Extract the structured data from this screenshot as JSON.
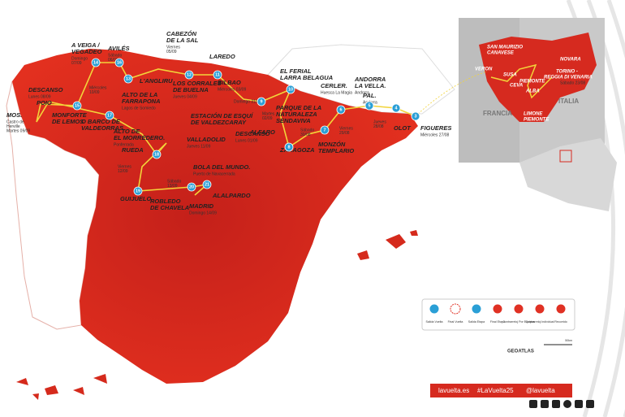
{
  "map": {
    "places": [
      {
        "name": [
          "A VEIGA /",
          "VEGADEO"
        ],
        "date": [
          "Domingo",
          "07/09"
        ]
      },
      {
        "name": [
          "AVILÉS"
        ],
        "date": [
          "Sábado",
          "06/09"
        ]
      },
      {
        "name": [
          "CABEZÓN",
          "DE LA SAL"
        ],
        "date": [
          "Viernes",
          "05/09"
        ]
      },
      {
        "name": [
          "LAREDO"
        ]
      },
      {
        "name": [
          "L'ANGLIRU"
        ]
      },
      {
        "name": [
          "LOS CORRALES",
          "DE BUELNA"
        ],
        "date": [
          "Jueves 04/09"
        ]
      },
      {
        "name": [
          "BILBAO"
        ],
        "date": [
          "Miércoles 03/09"
        ]
      },
      {
        "name": [
          "EL FERIAL",
          "LARRA BELAGUA"
        ]
      },
      {
        "name": [
          "DESCANSO"
        ],
        "date": [
          "Lunes 08/09"
        ]
      },
      {
        "date": [
          "Miércoles",
          "10/09"
        ]
      },
      {
        "name": [
          "ALTO DE LA",
          "FARRAPONA"
        ],
        "date": [
          "Lagos de Somiedo"
        ]
      },
      {
        "name": [
          "POIO"
        ]
      },
      {
        "name": [
          "MOS."
        ],
        "date": [
          "Castro de",
          "Herville",
          "Martes 09/09"
        ]
      },
      {
        "name": [
          "MONFORTE",
          "DE LEMOS"
        ]
      },
      {
        "name": [
          "O BARCO DE",
          "VALDEORRAS"
        ]
      },
      {
        "name": [
          "ALTO DE",
          "EL MORREDERO."
        ],
        "date": [
          "Ponferrada"
        ]
      },
      {
        "name": [
          "ESTACIÓN DE ESQUÍ",
          "DE VALDEZCARAY"
        ]
      },
      {
        "date": [
          "Domingo 31/08"
        ]
      },
      {
        "name": [
          "DESCANSO"
        ],
        "date": [
          "Lunes 01/09"
        ]
      },
      {
        "name": [
          "ALFARO"
        ]
      },
      {
        "date": [
          "Martes",
          "02/09"
        ]
      },
      {
        "name": [
          "PARQUE DE LA",
          "NATURALEZA",
          "SENDAVIVA"
        ]
      },
      {
        "name": [
          "CERLER."
        ],
        "date": [
          "Huesca La Magia"
        ]
      },
      {
        "name": [
          "ANDORRA",
          "LA VELLA."
        ],
        "date": [
          "Andorra"
        ]
      },
      {
        "name": [
          "PAL."
        ],
        "date": [
          "Andorra"
        ]
      },
      {
        "date": [
          "Sábado",
          "30/08"
        ]
      },
      {
        "name": [
          "ZARAGOZA"
        ]
      },
      {
        "date": [
          "Viernes",
          "29/08"
        ]
      },
      {
        "name": [
          "MONZÓN",
          "TEMPLARIO"
        ]
      },
      {
        "date": [
          "Jueves",
          "28/08"
        ]
      },
      {
        "name": [
          "OLOT"
        ]
      },
      {
        "name": [
          "FIGUERES"
        ],
        "date": [
          "Miércoles 27/08"
        ]
      },
      {
        "name": [
          "VALLADOLID"
        ],
        "date": [
          "Jueves 11/09"
        ]
      },
      {
        "name": [
          "RUEDA"
        ]
      },
      {
        "date": [
          "Viernes",
          "12/09"
        ]
      },
      {
        "name": [
          "GUIJUELO"
        ]
      },
      {
        "name": [
          "BOLA DEL MUNDO."
        ],
        "date": [
          "Puerto de Navacerrada"
        ]
      },
      {
        "date": [
          "Sábado",
          "13/09"
        ]
      },
      {
        "name": [
          "ROBLEDO",
          "DE CHAVELA"
        ]
      },
      {
        "name": [
          "ALALPARDO"
        ]
      },
      {
        "name": [
          "MADRID"
        ],
        "date": [
          "Domingo 14/09"
        ]
      }
    ],
    "stages": [
      "14",
      "16",
      "13",
      "12",
      "11",
      "10",
      "15",
      "17",
      "9",
      "8",
      "7",
      "6",
      "5",
      "4",
      "3",
      "18",
      "19",
      "20",
      "21"
    ]
  },
  "inset": {
    "labels": [
      "VERON",
      "SAN MAURIZIO",
      "CANAVESE",
      "NOVARA",
      "TORINO -",
      "REGGIA DI VENARIA",
      "Sábado 23/08",
      "PIEMONTE",
      "ITALIA",
      "FRANCIA",
      "ALBA",
      "LIMONE",
      "PIEMONTE",
      "CEVA",
      "SUSA"
    ]
  },
  "legend": [
    "Salida Vuelta",
    "Final Vuelta",
    "Salida Etapa",
    "Final Etapa",
    "Contrarreloj Por Equipos",
    "Contrarreloj Individual",
    "Recorrido"
  ],
  "scale": "50km",
  "credit": "GEOATLAS",
  "footer": [
    "lavuelta.es",
    "#LaVuelta25",
    "@lavuelta"
  ]
}
